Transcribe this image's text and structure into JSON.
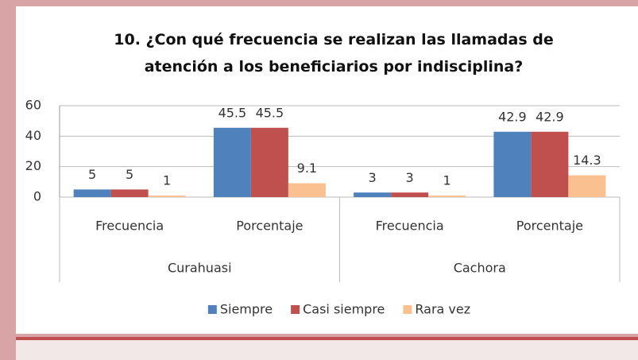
{
  "chart_data": {
    "type": "bar",
    "title": "10. ¿Con qué frecuencia se realizan las llamadas de atención a los beneficiarios por indisciplina?",
    "categories": [
      "Frecuencia",
      "Porcentaje",
      "Frecuencia",
      "Porcentaje"
    ],
    "groups": [
      "Curahuasi",
      "Cachora"
    ],
    "series": [
      {
        "name": "Siempre",
        "color": "#4f81bd",
        "values": [
          5,
          45.5,
          3,
          42.9
        ]
      },
      {
        "name": "Casi siempre",
        "color": "#c0504d",
        "values": [
          5,
          45.5,
          3,
          42.9
        ]
      },
      {
        "name": "Rara vez",
        "color": "#fac090",
        "values": [
          1,
          9.1,
          1,
          14.3
        ]
      }
    ],
    "ylim": [
      0,
      60
    ],
    "yticks": [
      0,
      20,
      40,
      60
    ],
    "grid": true,
    "legend": "bottom"
  }
}
